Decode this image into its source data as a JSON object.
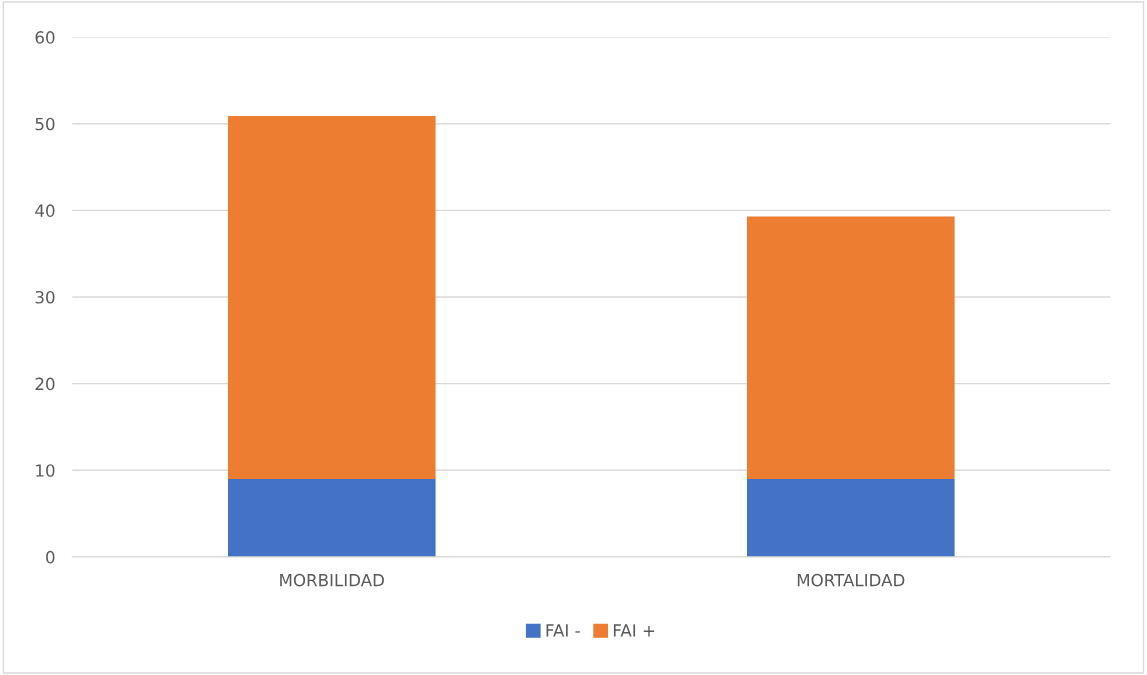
{
  "chart_data": {
    "type": "bar",
    "stacked": true,
    "categories": [
      "MORBILIDAD",
      "MORTALIDAD"
    ],
    "series": [
      {
        "name": "FAI -",
        "color": "#4472c4",
        "values": [
          9,
          9
        ]
      },
      {
        "name": "FAI +",
        "color": "#ed7d31",
        "values": [
          41.9,
          30.3
        ]
      }
    ],
    "ylim": [
      0,
      60
    ],
    "yticks": [
      0,
      10,
      20,
      30,
      40,
      50,
      60
    ],
    "grid": "y",
    "legend": "bottom"
  }
}
